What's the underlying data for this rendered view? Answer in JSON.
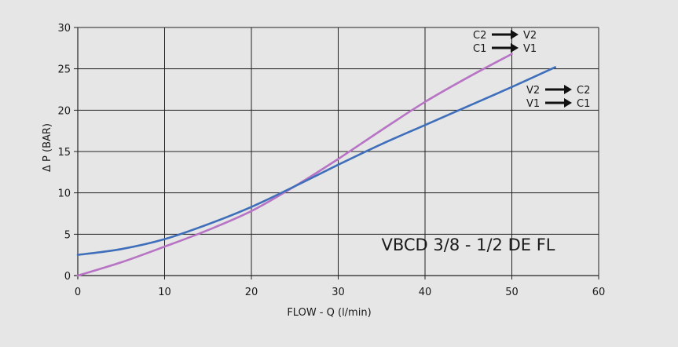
{
  "chart_data": {
    "type": "line",
    "title": "",
    "xlabel": "FLOW - Q (l/min)",
    "ylabel": "Δ  P (BAR)",
    "xlim": [
      0,
      60
    ],
    "ylim": [
      0,
      30
    ],
    "xticks": [
      0,
      10,
      20,
      30,
      40,
      50,
      60
    ],
    "yticks": [
      0,
      5,
      10,
      15,
      20,
      25,
      30
    ],
    "grid": true,
    "model_label": "VBCD 3/8 - 1/2 DE FL",
    "series": [
      {
        "color": "#b774c4",
        "x": [
          0,
          5,
          10,
          15,
          20,
          25,
          30,
          35,
          40,
          45,
          50
        ],
        "y": [
          0,
          1.6,
          3.5,
          5.5,
          7.8,
          10.8,
          14.1,
          17.6,
          21.0,
          24.0,
          26.8
        ]
      },
      {
        "color": "#3f6fba",
        "x": [
          0,
          5,
          10,
          15,
          20,
          25,
          30,
          35,
          40,
          45,
          50,
          55
        ],
        "y": [
          2.5,
          3.2,
          4.4,
          6.2,
          8.3,
          10.8,
          13.4,
          15.9,
          18.2,
          20.5,
          22.8,
          25.2
        ]
      }
    ],
    "annotations": [
      {
        "color": "#b774c4",
        "lines": [
          {
            "from": "C2",
            "to": "V2"
          },
          {
            "from": "C1",
            "to": "V1"
          }
        ]
      },
      {
        "color": "#3f6fba",
        "lines": [
          {
            "from": "V2",
            "to": "C2"
          },
          {
            "from": "V1",
            "to": "C1"
          }
        ]
      }
    ]
  }
}
